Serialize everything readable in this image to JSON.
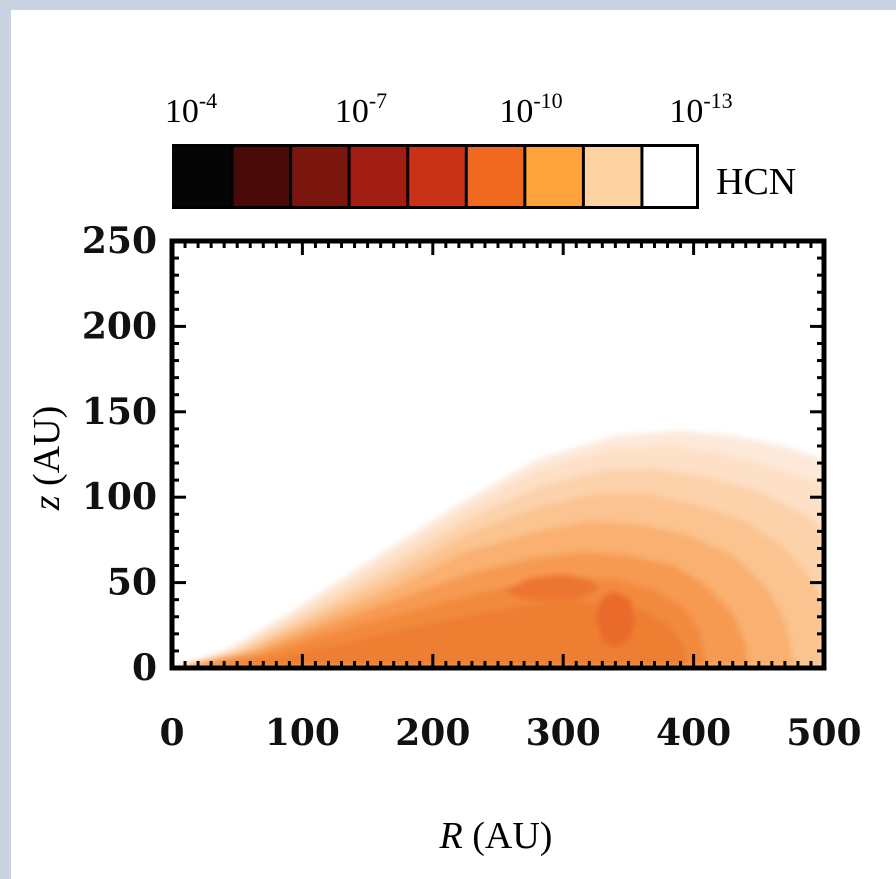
{
  "chart_data": {
    "type": "heatmap",
    "title": "",
    "colorbar": {
      "name": "HCN",
      "tick_labels": [
        {
          "base": "10",
          "exp": "-4"
        },
        {
          "base": "10",
          "exp": "-7"
        },
        {
          "base": "10",
          "exp": "-10"
        },
        {
          "base": "10",
          "exp": "-13"
        }
      ],
      "bins": [
        "#050505",
        "#4a0a08",
        "#7a160d",
        "#a21e12",
        "#c93217",
        "#f0691f",
        "#fea23c",
        "#fdd3a3",
        "#ffffff"
      ]
    },
    "xlabel": {
      "var": "R",
      "unit": " (AU)"
    },
    "ylabel": {
      "var": "z",
      "unit": " (AU)"
    },
    "xlim": [
      0,
      500
    ],
    "ylim": [
      0,
      250
    ],
    "xticks": [
      0,
      100,
      200,
      300,
      400,
      500
    ],
    "yticks": [
      0,
      50,
      100,
      150,
      200,
      250
    ],
    "x_tick_labels": [
      "0",
      "100",
      "200",
      "300",
      "400",
      "500"
    ],
    "y_tick_labels": [
      "0",
      "50",
      "100",
      "150",
      "200",
      "250"
    ],
    "contours": [
      {
        "color": "#fde9da",
        "points": [
          [
            0,
            0
          ],
          [
            40,
            10
          ],
          [
            90,
            32
          ],
          [
            150,
            62
          ],
          [
            220,
            96
          ],
          [
            280,
            122
          ],
          [
            340,
            136
          ],
          [
            390,
            139
          ],
          [
            430,
            136
          ],
          [
            470,
            130
          ],
          [
            500,
            122
          ],
          [
            500,
            0
          ]
        ]
      },
      {
        "color": "#fde0c6",
        "points": [
          [
            0,
            0
          ],
          [
            45,
            10
          ],
          [
            95,
            32
          ],
          [
            155,
            60
          ],
          [
            222,
            92
          ],
          [
            280,
            116
          ],
          [
            335,
            128
          ],
          [
            380,
            130
          ],
          [
            420,
            126
          ],
          [
            460,
            118
          ],
          [
            500,
            108
          ],
          [
            500,
            0
          ]
        ]
      },
      {
        "color": "#fcd2ab",
        "points": [
          [
            0,
            0
          ],
          [
            50,
            10
          ],
          [
            100,
            30
          ],
          [
            160,
            56
          ],
          [
            225,
            86
          ],
          [
            280,
            106
          ],
          [
            330,
            116
          ],
          [
            370,
            117
          ],
          [
            410,
            112
          ],
          [
            450,
            104
          ],
          [
            480,
            92
          ],
          [
            500,
            82
          ],
          [
            500,
            0
          ]
        ]
      },
      {
        "color": "#fbc38f",
        "points": [
          [
            0,
            0
          ],
          [
            55,
            10
          ],
          [
            105,
            29
          ],
          [
            165,
            52
          ],
          [
            225,
            78
          ],
          [
            280,
            94
          ],
          [
            325,
            102
          ],
          [
            365,
            102
          ],
          [
            400,
            96
          ],
          [
            440,
            86
          ],
          [
            470,
            70
          ],
          [
            490,
            52
          ],
          [
            500,
            36
          ],
          [
            500,
            0
          ]
        ]
      },
      {
        "color": "#f9b070",
        "points": [
          [
            0,
            0
          ],
          [
            60,
            10
          ],
          [
            110,
            27
          ],
          [
            170,
            47
          ],
          [
            225,
            68
          ],
          [
            280,
            80
          ],
          [
            320,
            86
          ],
          [
            360,
            84
          ],
          [
            395,
            78
          ],
          [
            430,
            66
          ],
          [
            455,
            48
          ],
          [
            470,
            28
          ],
          [
            478,
            0
          ]
        ]
      },
      {
        "color": "#f79a51",
        "points": [
          [
            0,
            0
          ],
          [
            65,
            9
          ],
          [
            115,
            24
          ],
          [
            175,
            41
          ],
          [
            230,
            56
          ],
          [
            275,
            64
          ],
          [
            315,
            68
          ],
          [
            350,
            66
          ],
          [
            385,
            60
          ],
          [
            410,
            48
          ],
          [
            430,
            32
          ],
          [
            440,
            14
          ],
          [
            442,
            0
          ]
        ]
      },
      {
        "color": "#f28a3d",
        "points": [
          [
            10,
            0
          ],
          [
            70,
            8
          ],
          [
            120,
            20
          ],
          [
            180,
            33
          ],
          [
            230,
            43
          ],
          [
            270,
            50
          ],
          [
            305,
            53
          ],
          [
            340,
            52
          ],
          [
            370,
            46
          ],
          [
            392,
            36
          ],
          [
            405,
            22
          ],
          [
            410,
            0
          ]
        ]
      },
      {
        "color": "#ee7e32",
        "points": [
          [
            20,
            0
          ],
          [
            80,
            6
          ],
          [
            130,
            14
          ],
          [
            185,
            24
          ],
          [
            230,
            31
          ],
          [
            265,
            36
          ],
          [
            300,
            39
          ],
          [
            330,
            38
          ],
          [
            360,
            34
          ],
          [
            380,
            26
          ],
          [
            392,
            14
          ],
          [
            395,
            0
          ]
        ]
      },
      {
        "color": "#ec7530",
        "points": [
          [
            255,
            45
          ],
          [
            275,
            53
          ],
          [
            300,
            55
          ],
          [
            320,
            52
          ],
          [
            328,
            46
          ],
          [
            310,
            40
          ],
          [
            285,
            39
          ],
          [
            265,
            41
          ]
        ]
      },
      {
        "color": "#e96a2c",
        "points": [
          [
            325,
            30
          ],
          [
            330,
            42
          ],
          [
            340,
            45
          ],
          [
            352,
            40
          ],
          [
            355,
            26
          ],
          [
            350,
            16
          ],
          [
            340,
            12
          ],
          [
            330,
            16
          ]
        ]
      }
    ]
  }
}
